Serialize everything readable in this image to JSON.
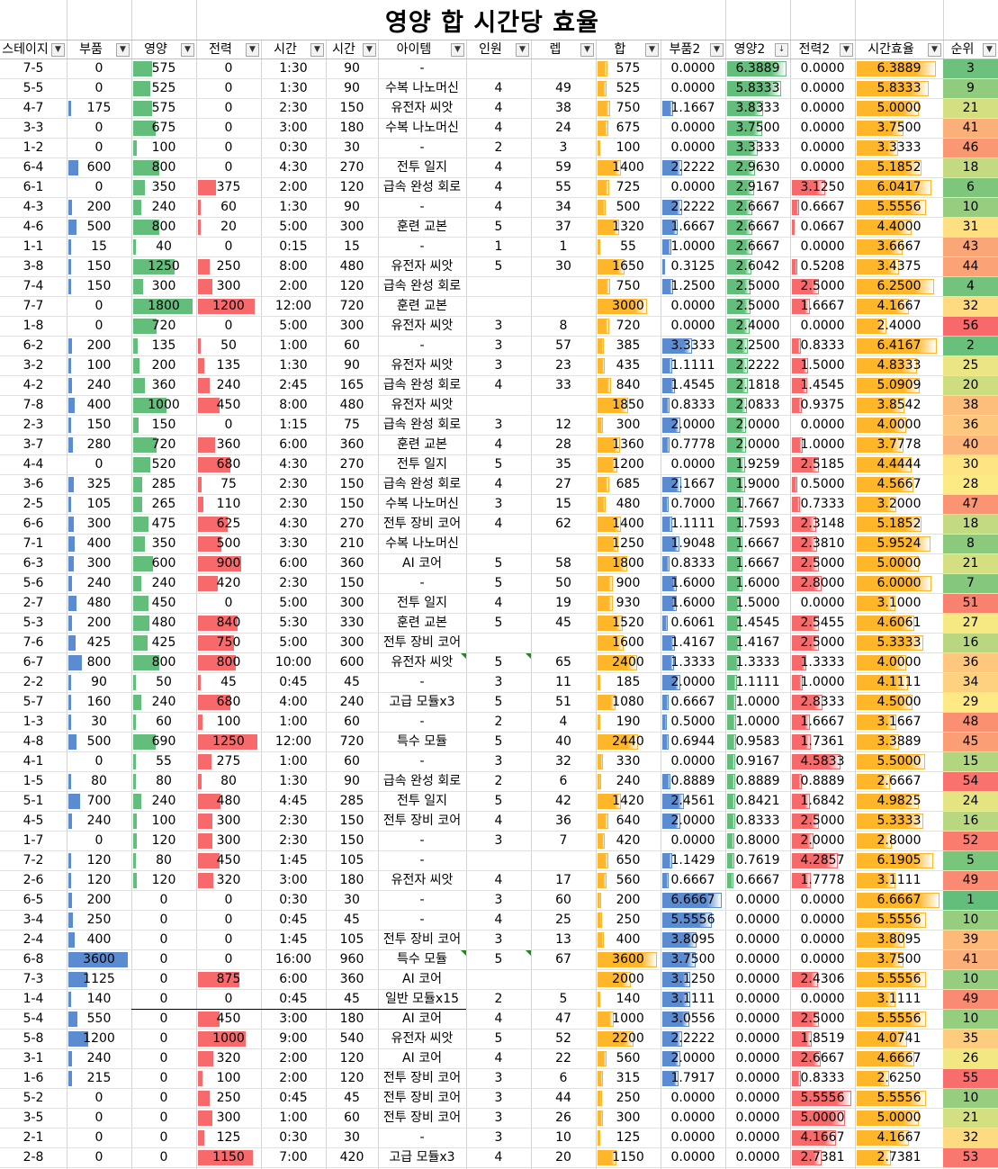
{
  "title": "영양 합 시간당 효율",
  "columns": [
    "스테이지",
    "부품",
    "영양",
    "전력",
    "시간",
    "시간",
    "아이템",
    "인원",
    "렙",
    "합",
    "부품2",
    "영양2",
    "전력2",
    "시간효율",
    "순위"
  ],
  "colors": {
    "blue_bar": "#5b8bd0",
    "green_bar": "#63be7b",
    "red_bar": "#f8696b",
    "orange_bar": "#ffb628",
    "rank_high": "#63be7b",
    "rank_mid": "#ffeb84",
    "rank_low": "#f8696b"
  },
  "rows": [
    [
      "7-5",
      "0",
      "575",
      "0",
      "1:30",
      "90",
      "-",
      "",
      "",
      "575",
      "0.0000",
      "6.3889",
      "0.0000",
      "6.3889",
      "3"
    ],
    [
      "5-5",
      "0",
      "525",
      "0",
      "1:30",
      "90",
      "수복 나노머신",
      "4",
      "49",
      "525",
      "0.0000",
      "5.8333",
      "0.0000",
      "5.8333",
      "9"
    ],
    [
      "4-7",
      "175",
      "575",
      "0",
      "2:30",
      "150",
      "유전자 씨앗",
      "4",
      "38",
      "750",
      "1.1667",
      "3.8333",
      "0.0000",
      "5.0000",
      "21"
    ],
    [
      "3-3",
      "0",
      "675",
      "0",
      "3:00",
      "180",
      "수복 나노머신",
      "4",
      "24",
      "675",
      "0.0000",
      "3.7500",
      "0.0000",
      "3.7500",
      "41"
    ],
    [
      "1-2",
      "0",
      "100",
      "0",
      "0:30",
      "30",
      "-",
      "2",
      "3",
      "100",
      "0.0000",
      "3.3333",
      "0.0000",
      "3.3333",
      "46"
    ],
    [
      "6-4",
      "600",
      "800",
      "0",
      "4:30",
      "270",
      "전투 일지",
      "4",
      "59",
      "1400",
      "2.2222",
      "2.9630",
      "0.0000",
      "5.1852",
      "18"
    ],
    [
      "6-1",
      "0",
      "350",
      "375",
      "2:00",
      "120",
      "급속 완성 회로",
      "4",
      "55",
      "725",
      "0.0000",
      "2.9167",
      "3.1250",
      "6.0417",
      "6"
    ],
    [
      "4-3",
      "200",
      "240",
      "60",
      "1:30",
      "90",
      "-",
      "4",
      "34",
      "500",
      "2.2222",
      "2.6667",
      "0.6667",
      "5.5556",
      "10"
    ],
    [
      "4-6",
      "500",
      "800",
      "20",
      "5:00",
      "300",
      "훈련 교본",
      "5",
      "37",
      "1320",
      "1.6667",
      "2.6667",
      "0.0667",
      "4.4000",
      "31"
    ],
    [
      "1-1",
      "15",
      "40",
      "0",
      "0:15",
      "15",
      "-",
      "1",
      "1",
      "55",
      "1.0000",
      "2.6667",
      "0.0000",
      "3.6667",
      "43"
    ],
    [
      "3-8",
      "150",
      "1250",
      "250",
      "8:00",
      "480",
      "유전자 씨앗",
      "5",
      "30",
      "1650",
      "0.3125",
      "2.6042",
      "0.5208",
      "3.4375",
      "44"
    ],
    [
      "7-4",
      "150",
      "300",
      "300",
      "2:00",
      "120",
      "급속 완성 회로",
      "",
      "",
      "750",
      "1.2500",
      "2.5000",
      "2.5000",
      "6.2500",
      "4"
    ],
    [
      "7-7",
      "0",
      "1800",
      "1200",
      "12:00",
      "720",
      "훈련 교본",
      "",
      "",
      "3000",
      "0.0000",
      "2.5000",
      "1.6667",
      "4.1667",
      "32"
    ],
    [
      "1-8",
      "0",
      "720",
      "0",
      "5:00",
      "300",
      "유전자 씨앗",
      "3",
      "8",
      "720",
      "0.0000",
      "2.4000",
      "0.0000",
      "2.4000",
      "56"
    ],
    [
      "6-2",
      "200",
      "135",
      "50",
      "1:00",
      "60",
      "-",
      "3",
      "57",
      "385",
      "3.3333",
      "2.2500",
      "0.8333",
      "6.4167",
      "2"
    ],
    [
      "3-2",
      "100",
      "200",
      "135",
      "1:30",
      "90",
      "유전자 씨앗",
      "3",
      "23",
      "435",
      "1.1111",
      "2.2222",
      "1.5000",
      "4.8333",
      "25"
    ],
    [
      "4-2",
      "240",
      "360",
      "240",
      "2:45",
      "165",
      "급속 완성 회로",
      "4",
      "33",
      "840",
      "1.4545",
      "2.1818",
      "1.4545",
      "5.0909",
      "20"
    ],
    [
      "7-8",
      "400",
      "1000",
      "450",
      "8:00",
      "480",
      "유전자 씨앗",
      "",
      "",
      "1850",
      "0.8333",
      "2.0833",
      "0.9375",
      "3.8542",
      "38"
    ],
    [
      "2-3",
      "150",
      "150",
      "0",
      "1:15",
      "75",
      "급속 완성 회로",
      "3",
      "12",
      "300",
      "2.0000",
      "2.0000",
      "0.0000",
      "4.0000",
      "36"
    ],
    [
      "3-7",
      "280",
      "720",
      "360",
      "6:00",
      "360",
      "훈련 교본",
      "4",
      "28",
      "1360",
      "0.7778",
      "2.0000",
      "1.0000",
      "3.7778",
      "40"
    ],
    [
      "4-4",
      "0",
      "520",
      "680",
      "4:30",
      "270",
      "전투 일지",
      "5",
      "35",
      "1200",
      "0.0000",
      "1.9259",
      "2.5185",
      "4.4444",
      "30"
    ],
    [
      "3-6",
      "325",
      "285",
      "75",
      "2:30",
      "150",
      "급속 완성 회로",
      "4",
      "27",
      "685",
      "2.1667",
      "1.9000",
      "0.5000",
      "4.5667",
      "28"
    ],
    [
      "2-5",
      "105",
      "265",
      "110",
      "2:30",
      "150",
      "수복 나노머신",
      "3",
      "15",
      "480",
      "0.7000",
      "1.7667",
      "0.7333",
      "3.2000",
      "47"
    ],
    [
      "6-6",
      "300",
      "475",
      "625",
      "4:30",
      "270",
      "전투 장비 코어",
      "4",
      "62",
      "1400",
      "1.1111",
      "1.7593",
      "2.3148",
      "5.1852",
      "18"
    ],
    [
      "7-1",
      "400",
      "350",
      "500",
      "3:30",
      "210",
      "수복 나노머신",
      "",
      "",
      "1250",
      "1.9048",
      "1.6667",
      "2.3810",
      "5.9524",
      "8"
    ],
    [
      "6-3",
      "300",
      "600",
      "900",
      "6:00",
      "360",
      "AI 코어",
      "5",
      "58",
      "1800",
      "0.8333",
      "1.6667",
      "2.5000",
      "5.0000",
      "21"
    ],
    [
      "5-6",
      "240",
      "240",
      "420",
      "2:30",
      "150",
      "-",
      "5",
      "50",
      "900",
      "1.6000",
      "1.6000",
      "2.8000",
      "6.0000",
      "7"
    ],
    [
      "2-7",
      "480",
      "450",
      "0",
      "5:00",
      "300",
      "전투 일지",
      "4",
      "19",
      "930",
      "1.6000",
      "1.5000",
      "0.0000",
      "3.1000",
      "51"
    ],
    [
      "5-3",
      "200",
      "480",
      "840",
      "5:30",
      "330",
      "훈련 교본",
      "5",
      "45",
      "1520",
      "0.6061",
      "1.4545",
      "2.5455",
      "4.6061",
      "27"
    ],
    [
      "7-6",
      "425",
      "425",
      "750",
      "5:00",
      "300",
      "전투 장비 코어",
      "",
      "",
      "1600",
      "1.4167",
      "1.4167",
      "2.5000",
      "5.3333",
      "16"
    ],
    [
      "6-7",
      "800",
      "800",
      "800",
      "10:00",
      "600",
      "유전자 씨앗",
      "5",
      "65",
      "2400",
      "1.3333",
      "1.3333",
      "1.3333",
      "4.0000",
      "36"
    ],
    [
      "2-2",
      "90",
      "50",
      "45",
      "0:45",
      "45",
      "-",
      "3",
      "11",
      "185",
      "2.0000",
      "1.1111",
      "1.0000",
      "4.1111",
      "34"
    ],
    [
      "5-7",
      "160",
      "240",
      "680",
      "4:00",
      "240",
      "고급 모듈x3",
      "5",
      "51",
      "1080",
      "0.6667",
      "1.0000",
      "2.8333",
      "4.5000",
      "29"
    ],
    [
      "1-3",
      "30",
      "60",
      "100",
      "1:00",
      "60",
      "-",
      "2",
      "4",
      "190",
      "0.5000",
      "1.0000",
      "1.6667",
      "3.1667",
      "48"
    ],
    [
      "4-8",
      "500",
      "690",
      "1250",
      "12:00",
      "720",
      "특수 모듈",
      "5",
      "40",
      "2440",
      "0.6944",
      "0.9583",
      "1.7361",
      "3.3889",
      "45"
    ],
    [
      "4-1",
      "0",
      "55",
      "275",
      "1:00",
      "60",
      "-",
      "3",
      "32",
      "330",
      "0.0000",
      "0.9167",
      "4.5833",
      "5.5000",
      "15"
    ],
    [
      "1-5",
      "80",
      "80",
      "80",
      "1:30",
      "90",
      "급속 완성 회로",
      "2",
      "6",
      "240",
      "0.8889",
      "0.8889",
      "0.8889",
      "2.6667",
      "54"
    ],
    [
      "5-1",
      "700",
      "240",
      "480",
      "4:45",
      "285",
      "전투 일지",
      "5",
      "42",
      "1420",
      "2.4561",
      "0.8421",
      "1.6842",
      "4.9825",
      "24"
    ],
    [
      "4-5",
      "240",
      "100",
      "300",
      "2:30",
      "150",
      "전투 장비 코어",
      "4",
      "36",
      "640",
      "2.0000",
      "0.8333",
      "2.5000",
      "5.3333",
      "16"
    ],
    [
      "1-7",
      "0",
      "120",
      "300",
      "2:30",
      "150",
      "-",
      "3",
      "7",
      "420",
      "0.0000",
      "0.8000",
      "2.0000",
      "2.8000",
      "52"
    ],
    [
      "7-2",
      "120",
      "80",
      "450",
      "1:45",
      "105",
      "-",
      "",
      "",
      "650",
      "1.1429",
      "0.7619",
      "4.2857",
      "6.1905",
      "5"
    ],
    [
      "2-6",
      "120",
      "120",
      "320",
      "3:00",
      "180",
      "유전자 씨앗",
      "4",
      "17",
      "560",
      "0.6667",
      "0.6667",
      "1.7778",
      "3.1111",
      "49"
    ],
    [
      "6-5",
      "200",
      "0",
      "0",
      "0:30",
      "30",
      "-",
      "3",
      "60",
      "200",
      "6.6667",
      "0.0000",
      "0.0000",
      "6.6667",
      "1"
    ],
    [
      "3-4",
      "250",
      "0",
      "0",
      "0:45",
      "45",
      "-",
      "4",
      "25",
      "250",
      "5.5556",
      "0.0000",
      "0.0000",
      "5.5556",
      "10"
    ],
    [
      "2-4",
      "400",
      "0",
      "0",
      "1:45",
      "105",
      "전투 장비 코어",
      "3",
      "13",
      "400",
      "3.8095",
      "0.0000",
      "0.0000",
      "3.8095",
      "39"
    ],
    [
      "6-8",
      "3600",
      "0",
      "0",
      "16:00",
      "960",
      "특수 모듈",
      "5",
      "67",
      "3600",
      "3.7500",
      "0.0000",
      "0.0000",
      "3.7500",
      "41"
    ],
    [
      "7-3",
      "1125",
      "0",
      "875",
      "6:00",
      "360",
      "AI 코어",
      "",
      "",
      "2000",
      "3.1250",
      "0.0000",
      "2.4306",
      "5.5556",
      "10"
    ],
    [
      "1-4",
      "140",
      "0",
      "0",
      "0:45",
      "45",
      "일반 모듈x15",
      "2",
      "5",
      "140",
      "3.1111",
      "0.0000",
      "0.0000",
      "3.1111",
      "49"
    ],
    [
      "5-4",
      "550",
      "0",
      "450",
      "3:00",
      "180",
      "AI 코어",
      "4",
      "47",
      "1000",
      "3.0556",
      "0.0000",
      "2.5000",
      "5.5556",
      "10"
    ],
    [
      "5-8",
      "1200",
      "0",
      "1000",
      "9:00",
      "540",
      "유전자 씨앗",
      "5",
      "52",
      "2200",
      "2.2222",
      "0.0000",
      "1.8519",
      "4.0741",
      "35"
    ],
    [
      "3-1",
      "240",
      "0",
      "320",
      "2:00",
      "120",
      "AI 코어",
      "4",
      "22",
      "560",
      "2.0000",
      "0.0000",
      "2.6667",
      "4.6667",
      "26"
    ],
    [
      "1-6",
      "215",
      "0",
      "100",
      "2:00",
      "120",
      "전투 장비 코어",
      "3",
      "6",
      "315",
      "1.7917",
      "0.0000",
      "0.8333",
      "2.6250",
      "55"
    ],
    [
      "5-2",
      "0",
      "0",
      "250",
      "0:45",
      "45",
      "전투 장비 코어",
      "3",
      "44",
      "250",
      "0.0000",
      "0.0000",
      "5.5556",
      "5.5556",
      "10"
    ],
    [
      "3-5",
      "0",
      "0",
      "300",
      "1:00",
      "60",
      "전투 장비 코어",
      "3",
      "26",
      "300",
      "0.0000",
      "0.0000",
      "5.0000",
      "5.0000",
      "21"
    ],
    [
      "2-1",
      "0",
      "0",
      "125",
      "0:30",
      "30",
      "-",
      "3",
      "10",
      "125",
      "0.0000",
      "0.0000",
      "4.1667",
      "4.1667",
      "32"
    ],
    [
      "2-8",
      "0",
      "0",
      "1150",
      "7:00",
      "420",
      "고급 모듈x3",
      "4",
      "20",
      "1150",
      "0.0000",
      "0.0000",
      "2.7381",
      "2.7381",
      "53"
    ]
  ]
}
